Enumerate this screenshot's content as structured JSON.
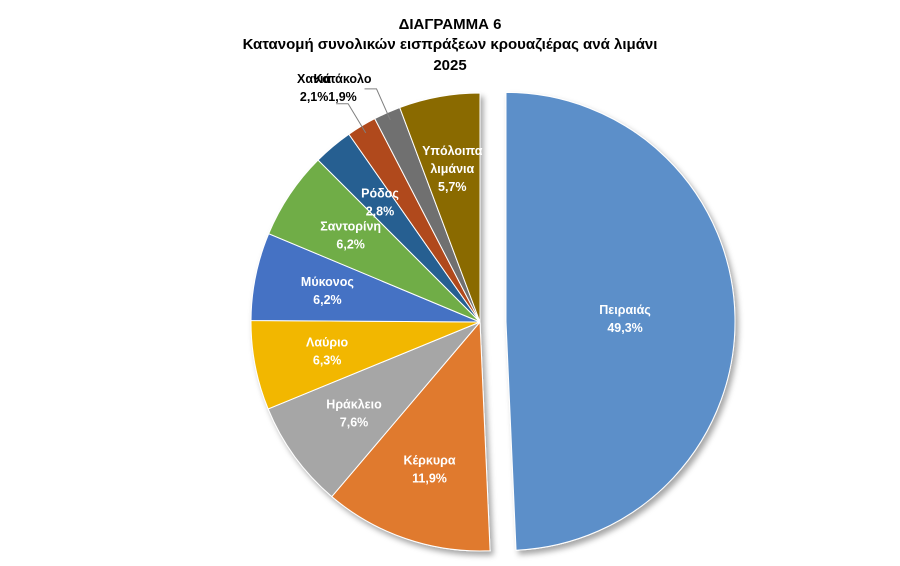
{
  "chart_data": {
    "type": "pie",
    "title": "ΔΙΑΓΡΑΜΜΑ 6",
    "subtitle": "Κατανομή συνολικών εισπράξεων κρουαζιέρας ανά λιμάνι",
    "year": "2025",
    "unit": "%",
    "slices": [
      {
        "category": "Πειραιάς",
        "value": 49.3,
        "value_label": "49,3%",
        "color": "#5B8FC9",
        "label_color": "#FFFFFF",
        "exploded": true
      },
      {
        "category": "Κέρκυρα",
        "value": 11.9,
        "value_label": "11,9%",
        "color": "#E07A2E",
        "label_color": "#FFFFFF"
      },
      {
        "category": "Ηράκλειο",
        "value": 7.6,
        "value_label": "7,6%",
        "color": "#A6A6A6",
        "label_color": "#FFFFFF"
      },
      {
        "category": "Λαύριο",
        "value": 6.3,
        "value_label": "6,3%",
        "color": "#F2B700",
        "label_color": "#FFFFFF"
      },
      {
        "category": "Μύκονος",
        "value": 6.2,
        "value_label": "6,2%",
        "color": "#4472C4",
        "label_color": "#FFFFFF"
      },
      {
        "category": "Σαντορίνη",
        "value": 6.2,
        "value_label": "6,2%",
        "color": "#70AD47",
        "label_color": "#FFFFFF"
      },
      {
        "category": "Ρόδος",
        "value": 2.8,
        "value_label": "2,8%",
        "color": "#255E91",
        "label_color": "#FFFFFF"
      },
      {
        "category": "Χανιά",
        "value": 2.1,
        "value_label": "2,1%",
        "color": "#B04A1C",
        "label_color": "#000000",
        "outside_label": true
      },
      {
        "category": "Κατάκολο",
        "value": 1.9,
        "value_label": "1,9%",
        "color": "#707070",
        "label_color": "#000000",
        "outside_label": true
      },
      {
        "category": "Υπόλοιπα λιμάνια",
        "category_lines": [
          "Υπόλοιπα",
          "λιμάνια"
        ],
        "value": 5.7,
        "value_label": "5,7%",
        "color": "#8A6A00",
        "label_color": "#FFFFFF"
      }
    ]
  }
}
